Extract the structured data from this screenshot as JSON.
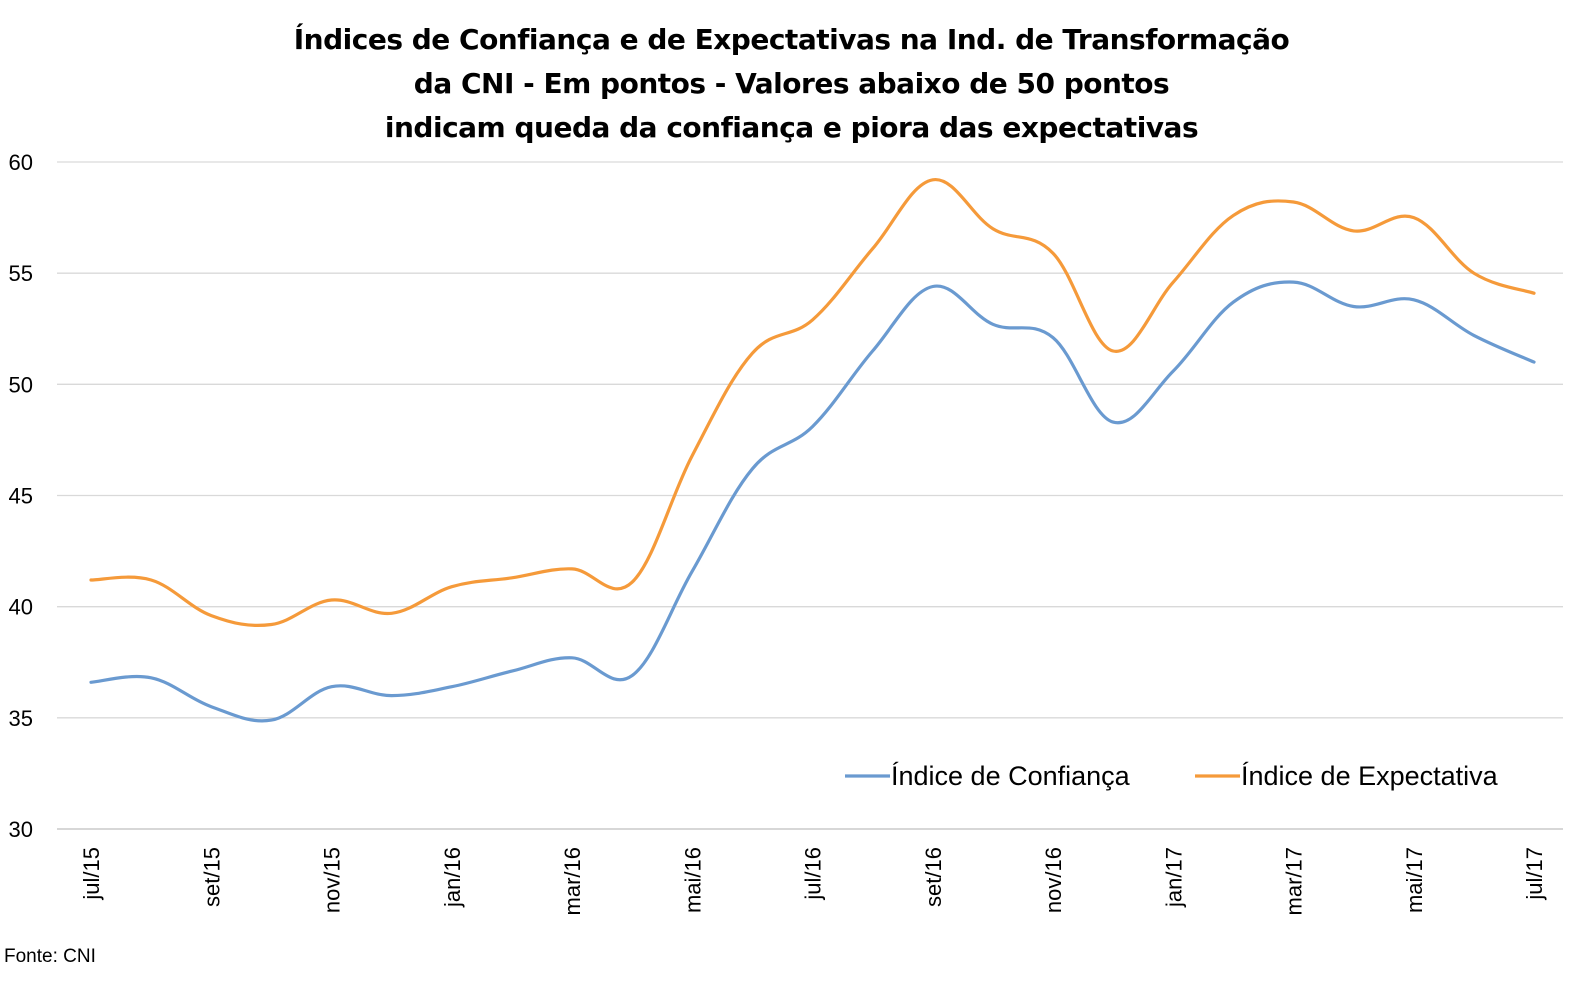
{
  "chart_data": {
    "type": "line",
    "title_lines": [
      "Índices de Confiança e de Expectativas na Ind. de Transformação",
      "da CNI - Em pontos - Valores abaixo de 50 pontos",
      "indicam queda da confiança e piora das expectativas"
    ],
    "x": [
      "jul/15",
      "ago/15",
      "set/15",
      "out/15",
      "nov/15",
      "dez/15",
      "jan/16",
      "fev/16",
      "mar/16",
      "abr/16",
      "mai/16",
      "jun/16",
      "jul/16",
      "ago/16",
      "set/16",
      "out/16",
      "nov/16",
      "dez/16",
      "jan/17",
      "fev/17",
      "mar/17",
      "abr/17",
      "mai/17",
      "jun/17",
      "jul/17"
    ],
    "x_tick_labels": [
      "jul/15",
      "set/15",
      "nov/15",
      "jan/16",
      "mar/16",
      "mai/16",
      "jul/16",
      "set/16",
      "nov/16",
      "jan/17",
      "mar/17",
      "mai/17",
      "jul/17"
    ],
    "x_tick_every": 2,
    "ylim": [
      30,
      60
    ],
    "y_ticks": [
      30,
      35,
      40,
      45,
      50,
      55,
      60
    ],
    "grid": true,
    "legend_position": "bottom-right",
    "series": [
      {
        "name": "Índice de Confiança",
        "color": "#6a9ad0",
        "values": [
          36.6,
          36.8,
          35.5,
          34.9,
          36.4,
          36.0,
          36.4,
          37.1,
          37.7,
          36.9,
          41.6,
          46.2,
          48.1,
          51.5,
          54.4,
          52.7,
          52.1,
          48.3,
          50.6,
          53.7,
          54.6,
          53.5,
          53.8,
          52.2,
          51.0
        ]
      },
      {
        "name": "Índice de Expectativa",
        "color": "#f59a3a",
        "values": [
          41.2,
          41.2,
          39.6,
          39.2,
          40.3,
          39.7,
          40.9,
          41.3,
          41.7,
          41.1,
          46.8,
          51.4,
          52.9,
          56.1,
          59.2,
          57.0,
          55.9,
          51.5,
          54.6,
          57.6,
          58.2,
          56.9,
          57.5,
          55.0,
          54.1
        ]
      }
    ]
  },
  "footer": {
    "source": "Fonte: CNI"
  }
}
